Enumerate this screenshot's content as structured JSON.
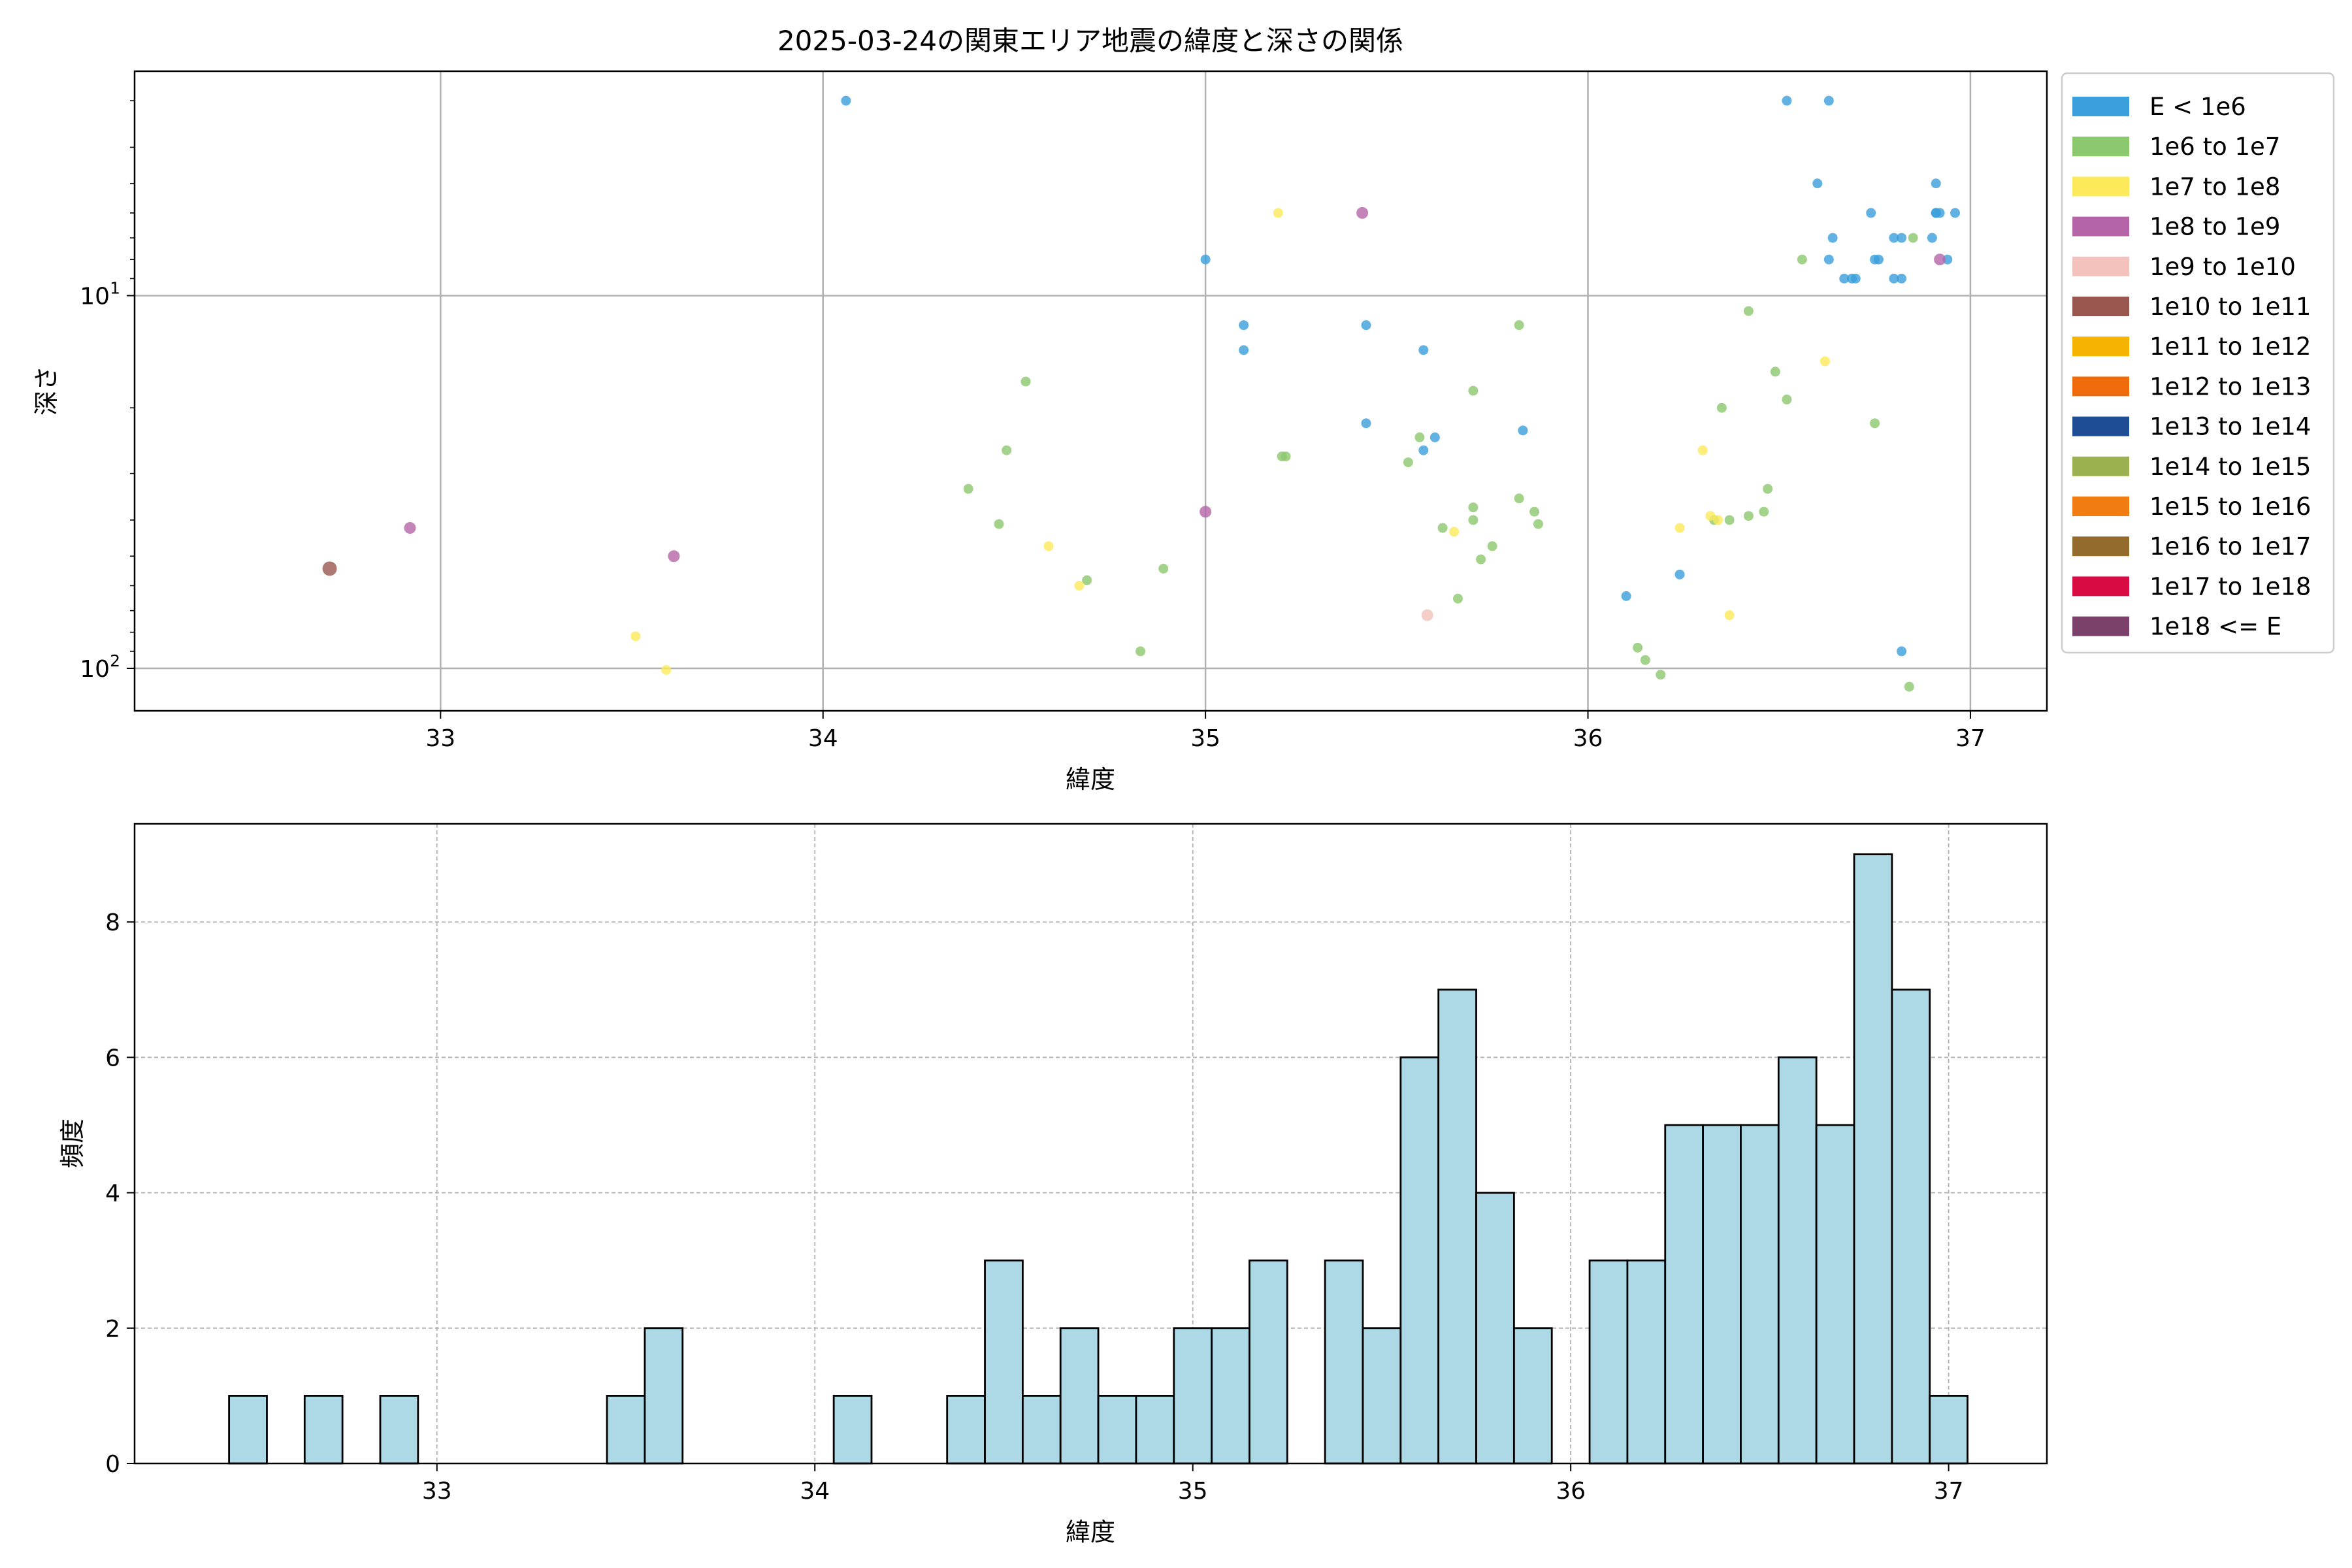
{
  "chart_data": [
    {
      "type": "scatter",
      "title": "2025-03-24の関東エリア地震の緯度と深さの関係",
      "xlabel": "緯度",
      "ylabel": "深さ",
      "xlim": [
        32.2,
        37.2
      ],
      "ylim": [
        130,
        2.5
      ],
      "y_scale": "log",
      "y_inverted": true,
      "grid": true,
      "x_ticks": [
        33,
        34,
        35,
        36,
        37
      ],
      "x_tick_labels": [
        "33",
        "34",
        "35",
        "36",
        "37"
      ],
      "y_ticks": [
        10,
        100
      ],
      "y_tick_labels": [
        "10",
        "100"
      ],
      "legend_position": "outside-right",
      "legend": [
        {
          "label": "E < 1e6",
          "color": "#3a9fdc"
        },
        {
          "label": "1e6 to 1e7",
          "color": "#8cc86e"
        },
        {
          "label": "1e7 to 1e8",
          "color": "#fcea5a"
        },
        {
          "label": "1e8 to 1e9",
          "color": "#b565a7"
        },
        {
          "label": "1e9 to 1e10",
          "color": "#f4c2bc"
        },
        {
          "label": "1e10 to 1e11",
          "color": "#98564e"
        },
        {
          "label": "1e11 to 1e12",
          "color": "#f6b400"
        },
        {
          "label": "1e12 to 1e13",
          "color": "#ee6a0a"
        },
        {
          "label": "1e13 to 1e14",
          "color": "#1e4d95"
        },
        {
          "label": "1e14 to 1e15",
          "color": "#9bb04f"
        },
        {
          "label": "1e15 to 1e16",
          "color": "#f07c12"
        },
        {
          "label": "1e16 to 1e17",
          "color": "#936b2d"
        },
        {
          "label": "1e17 to 1e18",
          "color": "#d90b43"
        },
        {
          "label": "1e18 <= E",
          "color": "#7b416b"
        }
      ],
      "series": [
        {
          "name": "E < 1e6",
          "points": [
            [
              34.06,
              3
            ],
            [
              35.0,
              8
            ],
            [
              35.1,
              12
            ],
            [
              35.1,
              14
            ],
            [
              35.42,
              12
            ],
            [
              35.42,
              22
            ],
            [
              35.57,
              14
            ],
            [
              35.57,
              26
            ],
            [
              35.6,
              24
            ],
            [
              35.83,
              23
            ],
            [
              36.1,
              64
            ],
            [
              36.24,
              56
            ],
            [
              36.52,
              3
            ],
            [
              36.6,
              5
            ],
            [
              36.63,
              3
            ],
            [
              36.63,
              8
            ],
            [
              36.64,
              7
            ],
            [
              36.67,
              9
            ],
            [
              36.69,
              9
            ],
            [
              36.7,
              9
            ],
            [
              36.74,
              6
            ],
            [
              36.75,
              8
            ],
            [
              36.76,
              8
            ],
            [
              36.8,
              9
            ],
            [
              36.8,
              7
            ],
            [
              36.82,
              7
            ],
            [
              36.82,
              9
            ],
            [
              36.82,
              90
            ],
            [
              36.9,
              7
            ],
            [
              36.91,
              6
            ],
            [
              36.91,
              5
            ],
            [
              36.91,
              6
            ],
            [
              36.92,
              6
            ],
            [
              36.94,
              8
            ],
            [
              36.96,
              6
            ]
          ]
        },
        {
          "name": "1e6 to 1e7",
          "points": [
            [
              34.38,
              33
            ],
            [
              34.46,
              41
            ],
            [
              34.48,
              26
            ],
            [
              34.53,
              17
            ],
            [
              34.69,
              58
            ],
            [
              34.83,
              90
            ],
            [
              34.89,
              54
            ],
            [
              35.2,
              27
            ],
            [
              35.21,
              27
            ],
            [
              35.53,
              28
            ],
            [
              35.56,
              24
            ],
            [
              35.62,
              42
            ],
            [
              35.66,
              65
            ],
            [
              35.7,
              37
            ],
            [
              35.7,
              40
            ],
            [
              35.7,
              18
            ],
            [
              35.72,
              51
            ],
            [
              35.75,
              47
            ],
            [
              35.82,
              35
            ],
            [
              35.82,
              12
            ],
            [
              35.86,
              38
            ],
            [
              35.87,
              41
            ],
            [
              36.13,
              88
            ],
            [
              36.15,
              95
            ],
            [
              36.19,
              104
            ],
            [
              36.33,
              40
            ],
            [
              36.35,
              20
            ],
            [
              36.37,
              40
            ],
            [
              36.42,
              39
            ],
            [
              36.42,
              11
            ],
            [
              36.46,
              38
            ],
            [
              36.47,
              33
            ],
            [
              36.49,
              16
            ],
            [
              36.52,
              19
            ],
            [
              36.56,
              8
            ],
            [
              36.75,
              22
            ],
            [
              36.84,
              112
            ],
            [
              36.85,
              7
            ]
          ]
        },
        {
          "name": "1e7 to 1e8",
          "points": [
            [
              33.51,
              82
            ],
            [
              33.59,
              101
            ],
            [
              34.59,
              47
            ],
            [
              34.67,
              60
            ],
            [
              35.19,
              6
            ],
            [
              35.65,
              43
            ],
            [
              36.24,
              42
            ],
            [
              36.3,
              26
            ],
            [
              36.32,
              39
            ],
            [
              36.34,
              40
            ],
            [
              36.37,
              72
            ],
            [
              36.62,
              15
            ]
          ]
        },
        {
          "name": "1e8 to 1e9",
          "points": [
            [
              32.92,
              42
            ],
            [
              33.61,
              50
            ],
            [
              35.0,
              38
            ],
            [
              35.41,
              6
            ],
            [
              36.92,
              8
            ]
          ]
        },
        {
          "name": "1e9 to 1e10",
          "points": [
            [
              35.58,
              72
            ]
          ]
        },
        {
          "name": "1e10 to 1e11",
          "points": [
            [
              32.71,
              54
            ]
          ]
        }
      ]
    },
    {
      "type": "bar",
      "subtype": "histogram",
      "title": "",
      "xlabel": "緯度",
      "ylabel": "頻度",
      "xlim": [
        32.2,
        37.26
      ],
      "ylim": [
        0,
        9.45
      ],
      "grid": true,
      "x_ticks": [
        33,
        34,
        35,
        36,
        37
      ],
      "x_tick_labels": [
        "33",
        "34",
        "35",
        "36",
        "37"
      ],
      "y_ticks": [
        0,
        2,
        4,
        6,
        8
      ],
      "y_tick_labels": [
        "0",
        "2",
        "4",
        "6",
        "8"
      ],
      "bar_color": "#add8e6",
      "bin_start": 32.45,
      "bin_width": 0.1,
      "counts": [
        1,
        0,
        1,
        0,
        1,
        0,
        0,
        0,
        0,
        0,
        1,
        2,
        0,
        0,
        0,
        0,
        1,
        0,
        0,
        1,
        3,
        1,
        2,
        1,
        1,
        2,
        2,
        3,
        0,
        3,
        2,
        6,
        7,
        4,
        2,
        0,
        3,
        3,
        5,
        5,
        5,
        6,
        5,
        9,
        7,
        1
      ]
    }
  ]
}
